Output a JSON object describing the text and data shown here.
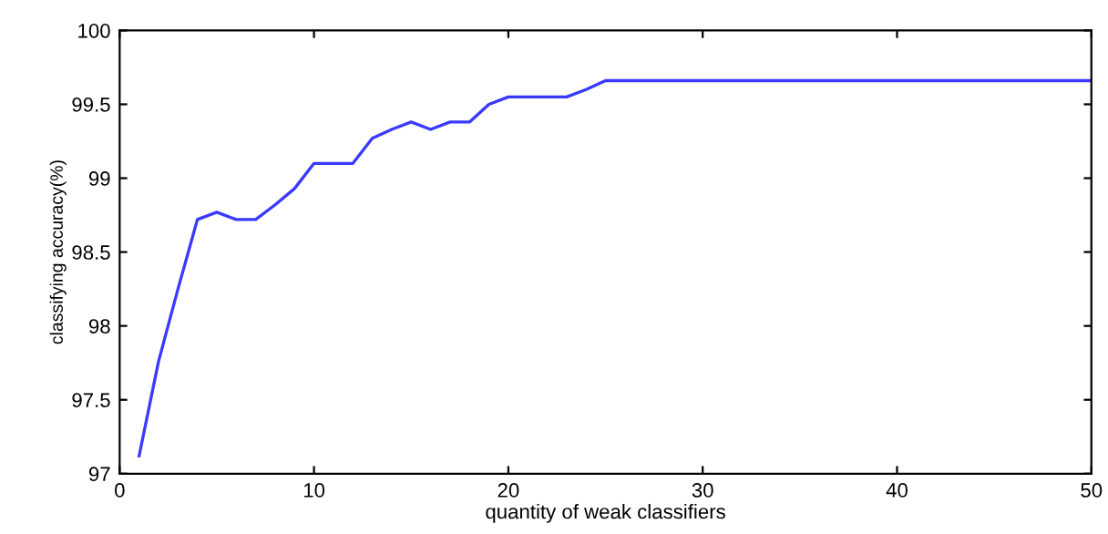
{
  "chart_data": {
    "type": "line",
    "xlabel": "quantity of weak classifiers",
    "ylabel": "classifying accuracy(%)",
    "x": [
      1,
      2,
      3,
      4,
      5,
      6,
      7,
      8,
      9,
      10,
      11,
      12,
      13,
      14,
      15,
      16,
      17,
      18,
      19,
      20,
      21,
      22,
      23,
      24,
      25,
      50
    ],
    "series": [
      {
        "color": "#3a3aff",
        "values": [
          97.12,
          97.76,
          98.25,
          98.72,
          98.77,
          98.72,
          98.72,
          98.82,
          98.93,
          99.1,
          99.1,
          99.1,
          99.27,
          99.33,
          99.38,
          99.33,
          99.38,
          99.38,
          99.5,
          99.55,
          99.55,
          99.55,
          99.55,
          99.6,
          99.66,
          99.66
        ]
      }
    ],
    "xlim": [
      0,
      50
    ],
    "xticks": [
      0,
      10,
      20,
      30,
      40,
      50
    ],
    "ylim": [
      97,
      100
    ],
    "yticks": [
      97,
      97.5,
      98,
      98.5,
      99,
      99.5,
      100
    ],
    "grid": false,
    "legend": false
  }
}
